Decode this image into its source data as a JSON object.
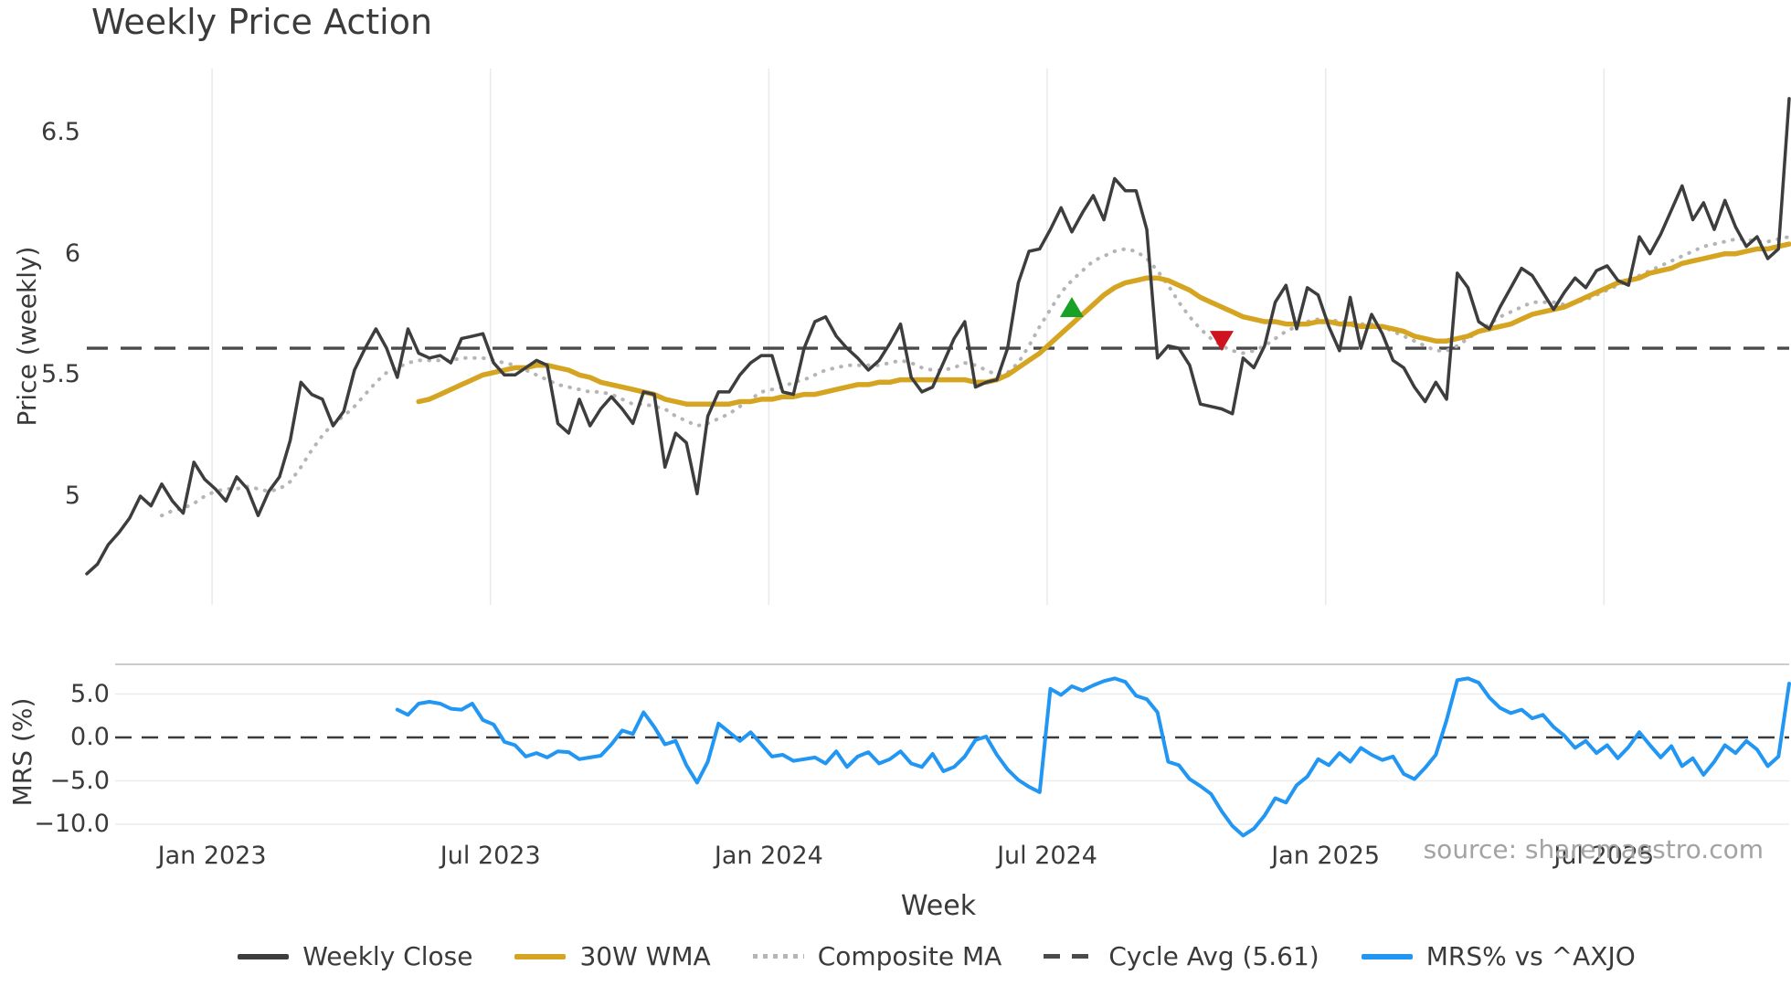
{
  "title": "Weekly Price Action",
  "source_note": "source: sharemaestro.com",
  "colors": {
    "close": "#3d3d3d",
    "wma": "#d5a421",
    "composite": "#b5b5b5",
    "cycle_avg": "#4a4a4a",
    "mrs": "#2196f3",
    "buy_marker": "#18a127",
    "sell_marker": "#cf121f",
    "grid_vertical": "#e7ebf0",
    "grid_horizontal": "#ececec",
    "panel_spine": "#c9cdd2",
    "text": "#3a3a3a",
    "source_text": "#a3a3a3"
  },
  "chart_data": {
    "type": "line",
    "title": "Weekly Price Action",
    "xlabel": "Week",
    "x_tick_labels": [
      "Jan 2023",
      "Jul 2023",
      "Jan 2024",
      "Jul 2024",
      "Jan 2025",
      "Jul 2025"
    ],
    "x_tick_weeks": [
      11.7,
      37.7,
      63.7,
      89.7,
      115.7,
      141.7
    ],
    "weeks_total": 160,
    "legend_position": "bottom-center",
    "legend": [
      {
        "label": "Weekly Close",
        "color": "#3d3d3d",
        "style": "solid"
      },
      {
        "label": "30W WMA",
        "color": "#d5a421",
        "style": "solid"
      },
      {
        "label": "Composite MA",
        "color": "#b5b5b5",
        "style": "dotted"
      },
      {
        "label": "Cycle Avg (5.61)",
        "color": "#4a4a4a",
        "style": "dashed"
      },
      {
        "label": "MRS% vs ^AXJO",
        "color": "#2196f3",
        "style": "solid"
      }
    ],
    "panels": [
      {
        "name": "price",
        "ylabel": "Price (weekly)",
        "yticks": [
          6.5,
          6,
          5.5,
          5
        ],
        "ylim": [
          4.56,
          6.76
        ],
        "grid": "vertical-only",
        "reference_line": {
          "label": "Cycle Avg (5.61)",
          "value": 5.61,
          "style": "dashed"
        },
        "markers": [
          {
            "name": "buy-signal",
            "shape": "triangle-up",
            "color": "#18a127",
            "week": 92,
            "value": 5.78
          },
          {
            "name": "sell-signal",
            "shape": "triangle-down",
            "color": "#cf121f",
            "week": 106,
            "value": 5.64
          }
        ],
        "series": [
          {
            "name": "Weekly Close",
            "color": "#3d3d3d",
            "style": "solid",
            "width": 3.5,
            "start_week": 0,
            "values": [
              4.68,
              4.72,
              4.8,
              4.85,
              4.91,
              5.0,
              4.96,
              5.05,
              4.98,
              4.93,
              5.14,
              5.07,
              5.03,
              4.98,
              5.08,
              5.03,
              4.92,
              5.02,
              5.08,
              5.23,
              5.47,
              5.42,
              5.4,
              5.29,
              5.35,
              5.52,
              5.61,
              5.69,
              5.61,
              5.49,
              5.69,
              5.59,
              5.57,
              5.58,
              5.55,
              5.65,
              5.66,
              5.67,
              5.55,
              5.5,
              5.5,
              5.53,
              5.56,
              5.54,
              5.3,
              5.26,
              5.4,
              5.29,
              5.36,
              5.41,
              5.36,
              5.3,
              5.43,
              5.42,
              5.12,
              5.26,
              5.22,
              5.01,
              5.33,
              5.43,
              5.43,
              5.5,
              5.55,
              5.58,
              5.58,
              5.43,
              5.42,
              5.61,
              5.72,
              5.74,
              5.66,
              5.61,
              5.57,
              5.52,
              5.56,
              5.63,
              5.71,
              5.49,
              5.43,
              5.45,
              5.55,
              5.65,
              5.72,
              5.45,
              5.47,
              5.48,
              5.61,
              5.88,
              6.01,
              6.02,
              6.1,
              6.19,
              6.09,
              6.17,
              6.24,
              6.14,
              6.31,
              6.26,
              6.26,
              6.1,
              5.57,
              5.62,
              5.61,
              5.54,
              5.38,
              5.37,
              5.36,
              5.34,
              5.57,
              5.53,
              5.62,
              5.8,
              5.87,
              5.69,
              5.86,
              5.83,
              5.7,
              5.6,
              5.82,
              5.61,
              5.75,
              5.67,
              5.56,
              5.53,
              5.45,
              5.39,
              5.47,
              5.4,
              5.92,
              5.86,
              5.72,
              5.69,
              5.78,
              5.86,
              5.94,
              5.91,
              5.84,
              5.77,
              5.84,
              5.9,
              5.86,
              5.93,
              5.95,
              5.89,
              5.87,
              6.07,
              6.0,
              6.08,
              6.18,
              6.28,
              6.14,
              6.21,
              6.1,
              6.22,
              6.11,
              6.03,
              6.07,
              5.98,
              6.02,
              6.64
            ]
          },
          {
            "name": "30W WMA",
            "color": "#d5a421",
            "style": "solid",
            "width": 5.5,
            "start_week": 31,
            "values": [
              5.39,
              5.4,
              5.42,
              5.44,
              5.46,
              5.48,
              5.5,
              5.51,
              5.52,
              5.53,
              5.53,
              5.54,
              5.54,
              5.53,
              5.52,
              5.5,
              5.49,
              5.47,
              5.46,
              5.45,
              5.44,
              5.43,
              5.42,
              5.4,
              5.39,
              5.38,
              5.38,
              5.38,
              5.38,
              5.38,
              5.39,
              5.39,
              5.4,
              5.4,
              5.41,
              5.41,
              5.42,
              5.42,
              5.43,
              5.44,
              5.45,
              5.46,
              5.46,
              5.47,
              5.47,
              5.48,
              5.48,
              5.48,
              5.48,
              5.48,
              5.48,
              5.48,
              5.47,
              5.47,
              5.48,
              5.5,
              5.53,
              5.56,
              5.59,
              5.63,
              5.67,
              5.71,
              5.75,
              5.79,
              5.83,
              5.86,
              5.88,
              5.89,
              5.9,
              5.9,
              5.89,
              5.87,
              5.85,
              5.82,
              5.8,
              5.78,
              5.76,
              5.74,
              5.73,
              5.72,
              5.72,
              5.71,
              5.71,
              5.71,
              5.72,
              5.72,
              5.71,
              5.71,
              5.7,
              5.7,
              5.7,
              5.69,
              5.68,
              5.66,
              5.65,
              5.64,
              5.64,
              5.65,
              5.66,
              5.68,
              5.69,
              5.7,
              5.71,
              5.73,
              5.75,
              5.76,
              5.77,
              5.78,
              5.8,
              5.82,
              5.84,
              5.86,
              5.88,
              5.89,
              5.9,
              5.92,
              5.93,
              5.94,
              5.96,
              5.97,
              5.98,
              5.99,
              6.0,
              6.0,
              6.01,
              6.02,
              6.02,
              6.03,
              6.04
            ]
          },
          {
            "name": "Composite MA",
            "color": "#b5b5b5",
            "style": "dotted",
            "width": 4,
            "start_week": 7,
            "values": [
              4.92,
              4.94,
              4.95,
              4.97,
              5.0,
              5.02,
              5.03,
              5.03,
              5.04,
              5.03,
              5.02,
              5.03,
              5.06,
              5.12,
              5.19,
              5.25,
              5.3,
              5.33,
              5.37,
              5.42,
              5.47,
              5.51,
              5.53,
              5.55,
              5.56,
              5.56,
              5.56,
              5.56,
              5.57,
              5.57,
              5.57,
              5.56,
              5.55,
              5.54,
              5.52,
              5.5,
              5.48,
              5.46,
              5.45,
              5.44,
              5.43,
              5.43,
              5.42,
              5.4,
              5.38,
              5.38,
              5.37,
              5.36,
              5.33,
              5.31,
              5.29,
              5.3,
              5.32,
              5.34,
              5.37,
              5.4,
              5.43,
              5.44,
              5.45,
              5.47,
              5.48,
              5.5,
              5.52,
              5.53,
              5.54,
              5.54,
              5.54,
              5.54,
              5.55,
              5.56,
              5.55,
              5.53,
              5.52,
              5.52,
              5.53,
              5.55,
              5.54,
              5.52,
              5.5,
              5.51,
              5.55,
              5.62,
              5.7,
              5.77,
              5.84,
              5.89,
              5.93,
              5.97,
              5.99,
              6.01,
              6.02,
              6.01,
              5.98,
              5.93,
              5.87,
              5.8,
              5.74,
              5.69,
              5.65,
              5.62,
              5.6,
              5.59,
              5.6,
              5.62,
              5.65,
              5.68,
              5.7,
              5.72,
              5.73,
              5.73,
              5.72,
              5.72,
              5.71,
              5.71,
              5.7,
              5.68,
              5.66,
              5.64,
              5.62,
              5.6,
              5.6,
              5.62,
              5.65,
              5.68,
              5.71,
              5.74,
              5.76,
              5.78,
              5.8,
              5.8,
              5.8,
              5.79,
              5.8,
              5.81,
              5.83,
              5.85,
              5.87,
              5.89,
              5.91,
              5.93,
              5.95,
              5.97,
              5.99,
              6.01,
              6.03,
              6.04,
              6.05,
              6.06,
              6.06,
              6.05,
              6.05,
              6.06,
              6.07
            ]
          }
        ]
      },
      {
        "name": "mrs",
        "ylabel": "MRS (%)",
        "yticks": [
          5.0,
          0.0,
          -5.0,
          -10.0
        ],
        "ylim": [
          -12.1,
          8.4
        ],
        "grid": "horizontal-only",
        "reference_line": {
          "label": "zero line",
          "value": 0.0,
          "style": "dashed"
        },
        "series": [
          {
            "name": "MRS% vs ^AXJO",
            "color": "#2196f3",
            "style": "solid",
            "width": 4,
            "start_week": 29,
            "values": [
              3.2,
              2.6,
              3.9,
              4.1,
              3.9,
              3.3,
              3.2,
              3.9,
              2.0,
              1.5,
              -0.5,
              -0.9,
              -2.2,
              -1.8,
              -2.3,
              -1.6,
              -1.7,
              -2.5,
              -2.3,
              -2.1,
              -0.8,
              0.8,
              0.4,
              2.9,
              1.2,
              -0.8,
              -0.4,
              -3.2,
              -5.2,
              -2.8,
              1.6,
              0.6,
              -0.4,
              0.6,
              -0.8,
              -2.2,
              -2.0,
              -2.7,
              -2.5,
              -2.3,
              -3.0,
              -1.6,
              -3.4,
              -2.2,
              -1.7,
              -3.0,
              -2.5,
              -1.6,
              -3.0,
              -3.4,
              -1.9,
              -3.9,
              -3.4,
              -2.2,
              -0.3,
              0.1,
              -2.0,
              -3.7,
              -4.9,
              -5.7,
              -6.3,
              5.6,
              4.9,
              5.9,
              5.4,
              6.0,
              6.5,
              6.8,
              6.4,
              4.8,
              4.4,
              2.9,
              -2.8,
              -3.2,
              -4.8,
              -5.6,
              -6.5,
              -8.5,
              -10.2,
              -11.3,
              -10.5,
              -9.0,
              -7.0,
              -7.5,
              -5.5,
              -4.5,
              -2.5,
              -3.2,
              -1.8,
              -2.8,
              -1.2,
              -2.0,
              -2.6,
              -2.2,
              -4.2,
              -4.8,
              -3.5,
              -2.0,
              2.0,
              6.6,
              6.8,
              6.3,
              4.6,
              3.4,
              2.8,
              3.2,
              2.2,
              2.6,
              1.2,
              0.2,
              -1.2,
              -0.4,
              -1.8,
              -0.9,
              -2.4,
              -1.1,
              0.6,
              -0.9,
              -2.3,
              -1.0,
              -3.3,
              -2.4,
              -4.3,
              -2.8,
              -0.9,
              -1.8,
              -0.4,
              -1.4,
              -3.3,
              -2.2,
              6.2
            ]
          }
        ]
      }
    ]
  }
}
